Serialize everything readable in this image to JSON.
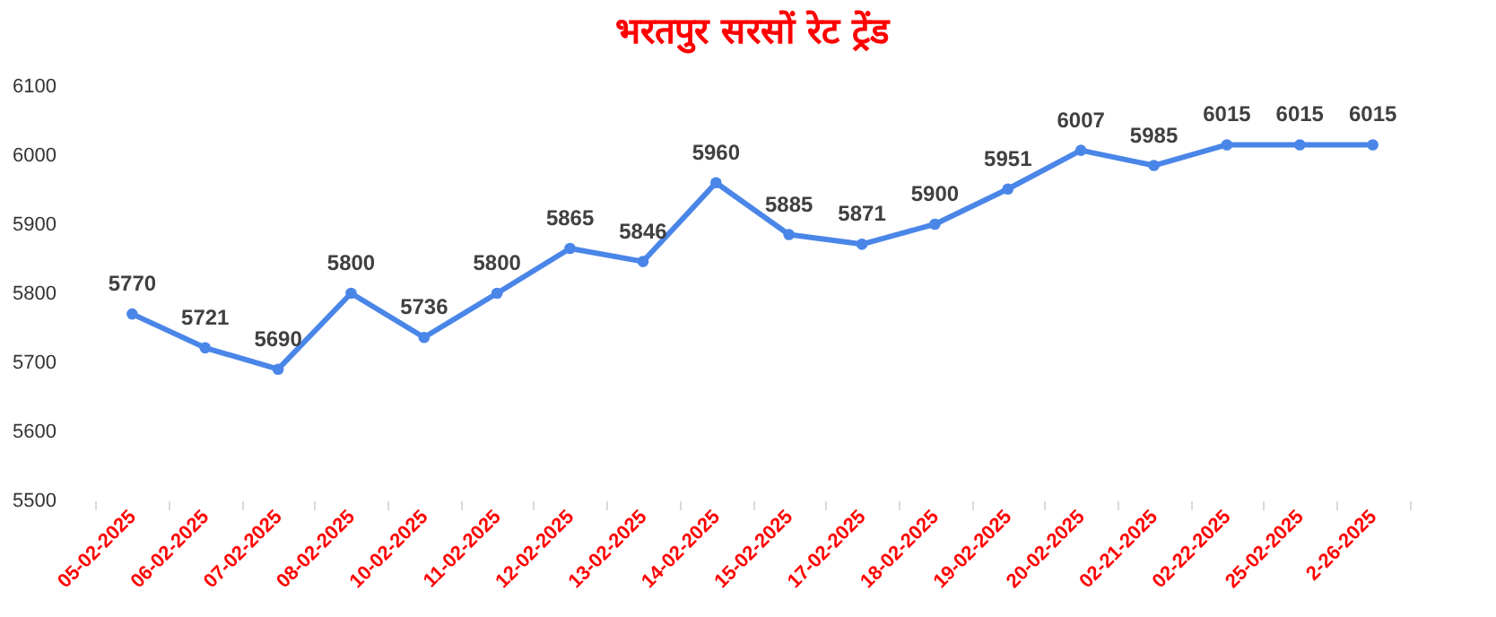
{
  "chart_data": {
    "type": "line",
    "title": "भरतपुर सरसों रेट ट्रेंड",
    "categories": [
      "05-02-2025",
      "06-02-2025",
      "07-02-2025",
      "08-02-2025",
      "10-02-2025",
      "11-02-2025",
      "12-02-2025",
      "13-02-2025",
      "14-02-2025",
      "15-02-2025",
      "17-02-2025",
      "18-02-2025",
      "19-02-2025",
      "20-02-2025",
      "02-21-2025",
      "02-22-2025",
      "25-02-2025",
      "2-26-2025"
    ],
    "series": [
      {
        "color": "#4a86e8",
        "values": [
          5770,
          5721,
          5690,
          5800,
          5736,
          5800,
          5865,
          5846,
          5960,
          5885,
          5871,
          5900,
          5951,
          6007,
          5985,
          6015,
          6015,
          6015
        ]
      }
    ],
    "ylim": [
      5500,
      6100
    ],
    "yticks": [
      5500,
      5600,
      5700,
      5800,
      5900,
      6000,
      6100
    ],
    "marker": "circle",
    "data_labels": true,
    "grid": false,
    "legend": false
  }
}
